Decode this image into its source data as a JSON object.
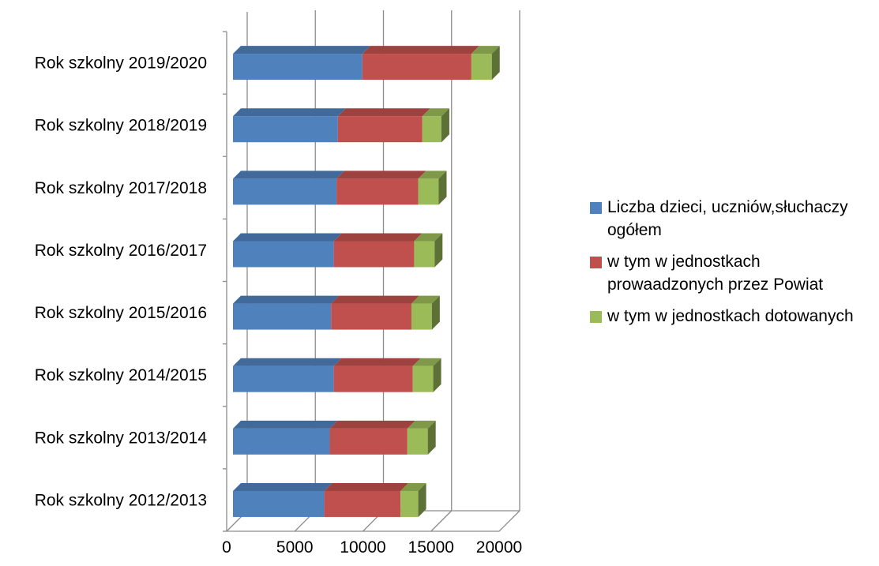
{
  "chart_data": {
    "type": "bar",
    "orientation": "horizontal",
    "stacked": true,
    "style": "3d",
    "categories": [
      "Rok szkolny 2019/2020",
      "Rok szkolny 2018/2019",
      "Rok szkolny 2017/2018",
      "Rok szkolny 2016/2017",
      "Rok szkolny 2015/2016",
      "Rok szkolny 2014/2015",
      "Rok szkolny 2013/2014",
      "Rok szkolny 2012/2013"
    ],
    "series": [
      {
        "name": "Liczba dzieci, uczniów,słuchaczy ogółem",
        "color": "#4F81BD",
        "values": [
          9500,
          7700,
          7600,
          7400,
          7200,
          7400,
          7100,
          6700
        ]
      },
      {
        "name": "w tym w jednostkach prowaadzonych przez Powiat",
        "color": "#C0504D",
        "values": [
          8000,
          6200,
          6000,
          5900,
          5900,
          5800,
          5700,
          5600
        ]
      },
      {
        "name": "w tym w jednostkach dotowanych",
        "color": "#9BBB59",
        "values": [
          1500,
          1400,
          1500,
          1500,
          1500,
          1500,
          1500,
          1300
        ]
      }
    ],
    "xlim": [
      0,
      20000
    ],
    "xticks": [
      "0",
      "5000",
      "10000",
      "15000",
      "20000"
    ],
    "grid": true,
    "legend_position": "right"
  }
}
